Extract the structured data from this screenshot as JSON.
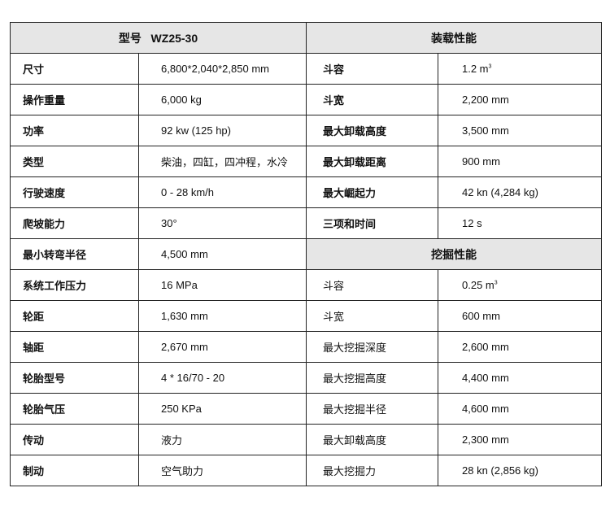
{
  "header": {
    "model_label": "型号",
    "model_value": "WZ25-30",
    "loading_title": "装载性能",
    "digging_title": "挖掘性能"
  },
  "specs": [
    {
      "label": "尺寸",
      "value": "6,800*2,040*2,850 mm"
    },
    {
      "label": "操作重量",
      "value": "6,000 kg"
    },
    {
      "label": "功率",
      "value": "92 kw (125 hp)"
    },
    {
      "label": "类型",
      "value": "柴油，四缸，四冲程，水冷"
    },
    {
      "label": "行驶速度",
      "value": "0 - 28 km/h"
    },
    {
      "label": "爬坡能力",
      "value": "30°"
    },
    {
      "label": "最小转弯半径",
      "value": "4,500 mm"
    },
    {
      "label": "系统工作压力",
      "value": "16 MPa"
    },
    {
      "label": "轮距",
      "value": "1,630 mm"
    },
    {
      "label": "轴距",
      "value": "2,670 mm"
    },
    {
      "label": "轮胎型号",
      "value": "4 * 16/70 - 20"
    },
    {
      "label": "轮胎气压",
      "value": "250 KPa"
    },
    {
      "label": "传动",
      "value": "液力"
    },
    {
      "label": "制动",
      "value": "空气助力"
    }
  ],
  "loading": [
    {
      "label": "斗容",
      "value": "1.2 m",
      "sup": "3"
    },
    {
      "label": "斗宽",
      "value": "2,200 mm"
    },
    {
      "label": "最大卸载高度",
      "value": "3,500 mm"
    },
    {
      "label": "最大卸载距离",
      "value": "900 mm"
    },
    {
      "label": "最大崛起力",
      "value": "42 kn (4,284 kg)"
    },
    {
      "label": "三项和时间",
      "value": "12 s"
    }
  ],
  "digging": [
    {
      "label": "斗容",
      "value": "0.25 m",
      "sup": "3"
    },
    {
      "label": "斗宽",
      "value": "600 mm"
    },
    {
      "label": "最大挖掘深度",
      "value": "2,600 mm"
    },
    {
      "label": "最大挖掘高度",
      "value": "4,400 mm"
    },
    {
      "label": "最大挖掘半径",
      "value": "4,600 mm"
    },
    {
      "label": "最大卸载高度",
      "value": "2,300 mm"
    },
    {
      "label": "最大挖掘力",
      "value": "28 kn (2,856 kg)"
    }
  ]
}
